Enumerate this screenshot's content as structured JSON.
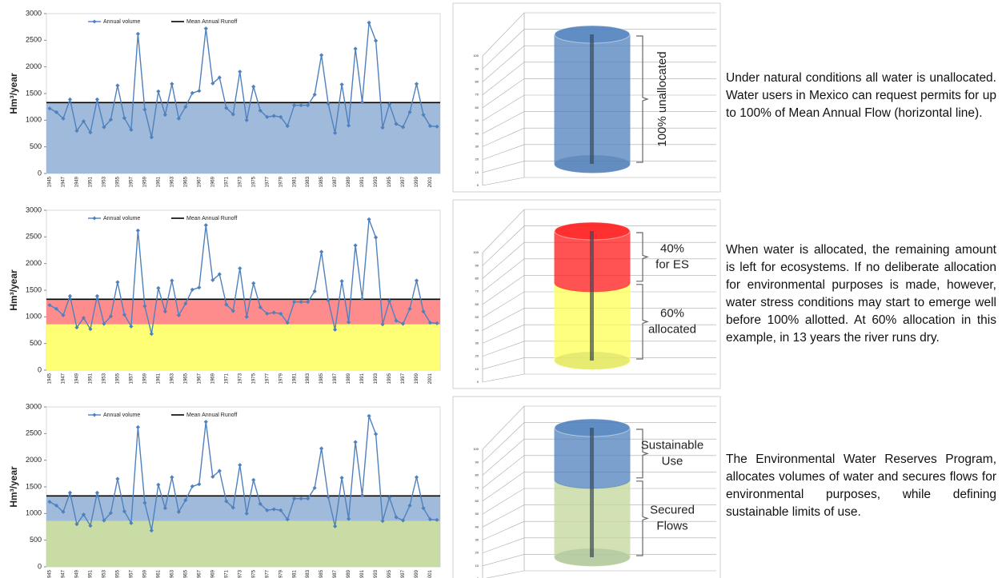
{
  "chart_data": [
    {
      "type": "line",
      "ylabel": "Hm³/year",
      "legend": "top-left",
      "categories": [
        "1945",
        null,
        "1947",
        null,
        "1949",
        null,
        "1951",
        null,
        "1953",
        null,
        "1955",
        null,
        "1957",
        null,
        "1959",
        null,
        "1961",
        null,
        "1963",
        null,
        "1965",
        null,
        "1967",
        null,
        "1969",
        null,
        "1971",
        null,
        "1973",
        null,
        "1975",
        null,
        "1977",
        null,
        "1979",
        null,
        "1981",
        null,
        "1983",
        null,
        "1985",
        null,
        "1987",
        null,
        "1989",
        null,
        "1991",
        null,
        "1993",
        null,
        "1995",
        null,
        "1997",
        null,
        "1999",
        null,
        "2001",
        null
      ],
      "series": [
        {
          "name": "Annual volume",
          "color": "#4f81bd",
          "values": [
            1220,
            1150,
            1030,
            1390,
            800,
            980,
            770,
            1390,
            870,
            1010,
            1650,
            1040,
            820,
            2620,
            1200,
            680,
            1540,
            1100,
            1680,
            1030,
            1250,
            1510,
            1550,
            2720,
            1690,
            1800,
            1230,
            1110,
            1910,
            1000,
            1630,
            1180,
            1060,
            1080,
            1060,
            890,
            1280,
            1280,
            1280,
            1480,
            2220,
            1310,
            760,
            1670,
            900,
            2340,
            1340,
            2830,
            2490,
            860,
            1300,
            930,
            870,
            1150,
            1680,
            1100,
            890,
            880
          ]
        }
      ],
      "reference_line": {
        "name": "Mean Annual Runoff",
        "color": "#000000",
        "value": 1330
      },
      "bands": [
        {
          "from": 0,
          "to": 1330,
          "color": "#95b3d7"
        }
      ],
      "ylim": [
        0,
        3000
      ],
      "yticks": [
        0,
        500,
        1000,
        1500,
        2000,
        2500,
        3000
      ]
    },
    {
      "type": "line",
      "ylabel": "Hm³/year",
      "legend": "top-left",
      "categories": [
        "1945",
        null,
        "1947",
        null,
        "1949",
        null,
        "1951",
        null,
        "1953",
        null,
        "1955",
        null,
        "1957",
        null,
        "1959",
        null,
        "1961",
        null,
        "1963",
        null,
        "1965",
        null,
        "1967",
        null,
        "1969",
        null,
        "1971",
        null,
        "1973",
        null,
        "1975",
        null,
        "1977",
        null,
        "1979",
        null,
        "1981",
        null,
        "1983",
        null,
        "1985",
        null,
        "1987",
        null,
        "1989",
        null,
        "1991",
        null,
        "1993",
        null,
        "1995",
        null,
        "1997",
        null,
        "1999",
        null,
        "2001",
        null
      ],
      "series": [
        {
          "name": "Annual volume",
          "color": "#4f81bd",
          "values": [
            1220,
            1150,
            1030,
            1390,
            800,
            980,
            770,
            1390,
            870,
            1010,
            1650,
            1040,
            820,
            2620,
            1200,
            680,
            1540,
            1100,
            1680,
            1030,
            1250,
            1510,
            1550,
            2720,
            1690,
            1800,
            1230,
            1110,
            1910,
            1000,
            1630,
            1180,
            1060,
            1080,
            1060,
            890,
            1280,
            1280,
            1280,
            1480,
            2220,
            1310,
            760,
            1670,
            900,
            2340,
            1340,
            2830,
            2490,
            860,
            1300,
            930,
            870,
            1150,
            1680,
            1100,
            890,
            880
          ]
        }
      ],
      "reference_line": {
        "name": "Mean Annual Runoff",
        "color": "#000000",
        "value": 1330
      },
      "bands": [
        {
          "from": 0,
          "to": 860,
          "color": "#ffff66"
        },
        {
          "from": 860,
          "to": 1330,
          "color": "#ff7f7f"
        }
      ],
      "ylim": [
        0,
        3000
      ],
      "yticks": [
        0,
        500,
        1000,
        1500,
        2000,
        2500,
        3000
      ]
    },
    {
      "type": "line",
      "ylabel": "Hm³/year",
      "legend": "top-left",
      "categories": [
        "1945",
        null,
        "1947",
        null,
        "1949",
        null,
        "1951",
        null,
        "1953",
        null,
        "1955",
        null,
        "1957",
        null,
        "1959",
        null,
        "1961",
        null,
        "1963",
        null,
        "1965",
        null,
        "1967",
        null,
        "1969",
        null,
        "1971",
        null,
        "1973",
        null,
        "1975",
        null,
        "1977",
        null,
        "1979",
        null,
        "1981",
        null,
        "1983",
        null,
        "1985",
        null,
        "1987",
        null,
        "1989",
        null,
        "1991",
        null,
        "1993",
        null,
        "1995",
        null,
        "1997",
        null,
        "1999",
        null,
        "2001",
        null
      ],
      "series": [
        {
          "name": "Annual volume",
          "color": "#4f81bd",
          "values": [
            1220,
            1150,
            1030,
            1390,
            800,
            980,
            770,
            1390,
            870,
            1010,
            1650,
            1040,
            820,
            2620,
            1200,
            680,
            1540,
            1100,
            1680,
            1030,
            1250,
            1510,
            1550,
            2720,
            1690,
            1800,
            1230,
            1110,
            1910,
            1000,
            1630,
            1180,
            1060,
            1080,
            1060,
            890,
            1280,
            1280,
            1280,
            1480,
            2220,
            1310,
            760,
            1670,
            900,
            2340,
            1340,
            2830,
            2490,
            860,
            1300,
            930,
            870,
            1150,
            1680,
            1100,
            890,
            880
          ]
        }
      ],
      "reference_line": {
        "name": "Mean Annual Runoff",
        "color": "#000000",
        "value": 1330
      },
      "bands": [
        {
          "from": 0,
          "to": 860,
          "color": "#c4d89c"
        },
        {
          "from": 860,
          "to": 1330,
          "color": "#95b3d7"
        }
      ],
      "ylim": [
        0,
        3000
      ],
      "yticks": [
        0,
        500,
        1000,
        1500,
        2000,
        2500,
        3000
      ]
    },
    {
      "type": "cylinder",
      "ylim": [
        0,
        100
      ],
      "yticks": [
        0,
        10,
        20,
        30,
        40,
        50,
        60,
        70,
        80,
        90,
        100
      ],
      "segments": [
        {
          "value": 100,
          "color": "#4f81bd",
          "label": [
            "100% unallocated"
          ],
          "label_orientation": "vertical"
        }
      ]
    },
    {
      "type": "cylinder",
      "ylim": [
        0,
        100
      ],
      "yticks": [
        0,
        10,
        20,
        30,
        40,
        50,
        60,
        70,
        80,
        90,
        100
      ],
      "segments": [
        {
          "value": 60,
          "color": "#ffff55",
          "label": [
            "60%",
            "allocated"
          ]
        },
        {
          "value": 40,
          "color": "#ff1a1a",
          "label": [
            "40%",
            "for ES"
          ]
        }
      ]
    },
    {
      "type": "cylinder",
      "ylim": [
        0,
        100
      ],
      "yticks": [
        0,
        10,
        20,
        30,
        40,
        50,
        60,
        70,
        80,
        90,
        100
      ],
      "segments": [
        {
          "value": 60,
          "color": "#c4d89c",
          "label": [
            "Secured",
            "Flows"
          ]
        },
        {
          "value": 40,
          "color": "#4f81bd",
          "label": [
            "Sustainable",
            "Use"
          ]
        }
      ]
    }
  ],
  "panels": [
    {
      "text": "Under natural conditions all water is unallocated. Water users in Mexico can request permits for up to 100% of Mean Annual Flow (horizontal line)."
    },
    {
      "text": "When water is allocated, the remaining amount is left for ecosystems. If no deliberate allocation for environmental purposes is made, however, water stress conditions may start to emerge well before 100% allotted. At 60% allocation in this example, in 13 years the river runs dry."
    },
    {
      "text": "The Environmental Water Reserves Program, allocates volumes of water and secures flows for environmental purposes, while defining sustainable limits of use."
    }
  ]
}
